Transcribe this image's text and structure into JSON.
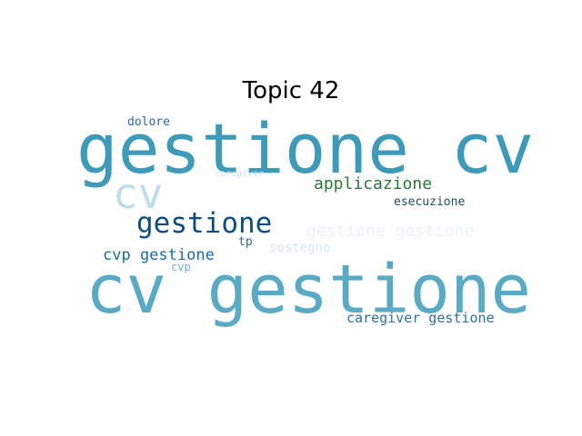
{
  "chart_data": {
    "type": "wordcloud",
    "title": "Topic 42",
    "words": [
      {
        "text": "gestione cv",
        "weight": 1.0,
        "color": "#3d9ab8"
      },
      {
        "text": "cv gestione",
        "weight": 0.98,
        "color": "#5aaac6"
      },
      {
        "text": "cv",
        "weight": 0.55,
        "color": "#bcdde9"
      },
      {
        "text": "gestione",
        "weight": 0.42,
        "color": "#0d4d86"
      },
      {
        "text": "applicazione",
        "weight": 0.26,
        "color": "#257a3a"
      },
      {
        "text": "gestione gestione",
        "weight": 0.26,
        "color": "#eaf4f8"
      },
      {
        "text": "cvp gestione",
        "weight": 0.24,
        "color": "#1a6aa6"
      },
      {
        "text": "caregiver gestione",
        "weight": 0.22,
        "color": "#2a70a8"
      },
      {
        "text": "dolore",
        "weight": 0.18,
        "color": "#2a6aa2"
      },
      {
        "text": "esecuzione",
        "weight": 0.16,
        "color": "#1f4f5f"
      },
      {
        "text": "sostegno",
        "weight": 0.16,
        "color": "#d6e9f0"
      },
      {
        "text": "tp",
        "weight": 0.15,
        "color": "#2a6a9a"
      },
      {
        "text": "cvp",
        "weight": 0.14,
        "color": "#6aaed0"
      },
      {
        "text": "caregiver",
        "weight": 0.12,
        "color": "#c4dfea"
      }
    ]
  }
}
